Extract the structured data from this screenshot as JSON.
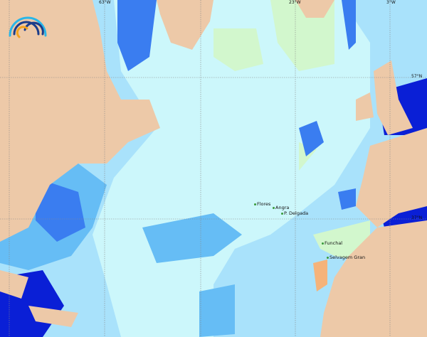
{
  "map": {
    "grid_labels": {
      "longitudes": [
        "63°W",
        "23°W",
        "3°W"
      ],
      "latitudes": [
        "57°N",
        "37°N"
      ]
    },
    "ports": [
      {
        "name": "Flores"
      },
      {
        "name": "Angra"
      },
      {
        "name": "P. Delgada"
      },
      {
        "name": "Funchal"
      },
      {
        "name": "Selvagem Gran"
      }
    ],
    "colors": {
      "land": "#edc9a8",
      "deep_blue": "#0a1fd6",
      "blue": "#3a7df0",
      "mid_blue": "#66bdf5",
      "light_blue": "#a9e2fb",
      "pale_cyan": "#ccf7fb",
      "pale_green": "#d2f7cd",
      "orange": "#f5b37a"
    },
    "logo": {
      "icon": "wave-arcs-logo"
    }
  }
}
